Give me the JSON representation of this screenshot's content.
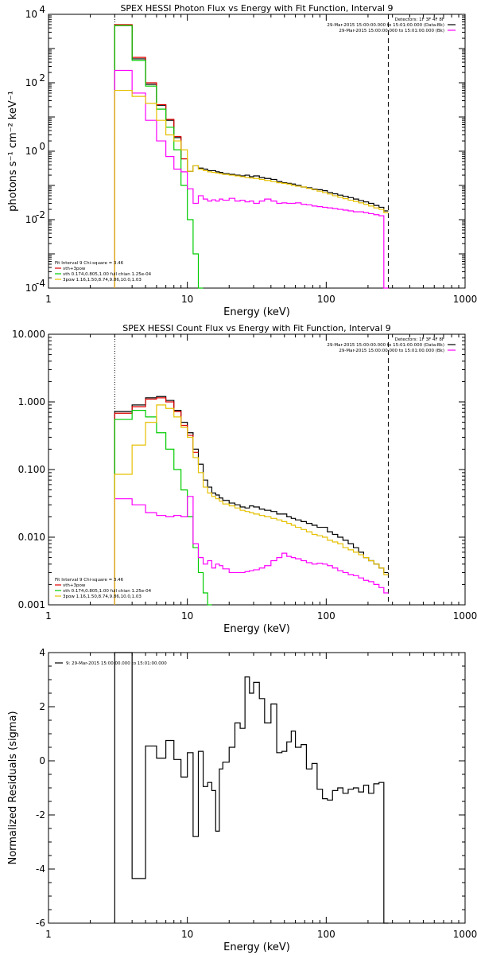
{
  "chart_data": [
    {
      "type": "line",
      "title": "SPEX HESSI Photon Flux vs Energy with Fit Function, Interval 9",
      "xlabel": "Energy (keV)",
      "ylabel": "photons s⁻¹ cm⁻² keV⁻¹",
      "xscale": "log",
      "yscale": "log",
      "xlim": [
        1,
        1000
      ],
      "ylim": [
        0.0001,
        10000
      ],
      "x_ticks": [
        {
          "v": 1,
          "label": "1"
        },
        {
          "v": 10,
          "label": "10"
        },
        {
          "v": 100,
          "label": "100"
        },
        {
          "v": 1000,
          "label": "1000"
        }
      ],
      "y_ticks": [
        {
          "v": 0.0001,
          "base": "10",
          "exp": "-4"
        },
        {
          "v": 0.01,
          "base": "10",
          "exp": "-2"
        },
        {
          "v": 1,
          "base": "10",
          "exp": "0"
        },
        {
          "v": 100,
          "base": "10",
          "exp": "2"
        },
        {
          "v": 10000,
          "base": "10",
          "exp": "4"
        }
      ],
      "header": [
        "Detectors: 1F 3F 4F 8F",
        "29-Mar-2015 15:00:00.000 to 15:01:00.000 (Data-Bk)",
        "29-Mar-2015 15:00:00.000 to 15:01:00.000 (Bk)"
      ],
      "legend": [
        "Fit Interval 9   Chi-square = 3.46",
        "vth+3pow",
        "vth 0.174,0.805,1.00  full chian 1.25e-04",
        "3pow 1.16,1.50,8.74,9.86,10.0,1.03"
      ],
      "vlines": {
        "dotted": 3.0,
        "dashed": 280
      },
      "edges": [
        3.0,
        4.0,
        5.0,
        6.0,
        7.0,
        8.0,
        9.0,
        10.0,
        11.0,
        12.0,
        13.0,
        14.0,
        15.0,
        16.0,
        17.0,
        18.0,
        20.0,
        22.0,
        24.0,
        26.0,
        28.0,
        30.0,
        33.0,
        36.0,
        40.0,
        44.0,
        48.0,
        52.0,
        56.0,
        60.0,
        66.0,
        72.0,
        79.0,
        86.0,
        94.0,
        102.0,
        111.0,
        121.0,
        132.0,
        144.0,
        157.0,
        171.0,
        186.0,
        202.0,
        220.0,
        240.0,
        260.0,
        280.0
      ],
      "series": [
        {
          "color": "#000000",
          "values": [
            4800,
            500,
            90,
            22,
            8,
            2.5,
            0.6,
            0.26,
            0.38,
            0.32,
            0.3,
            0.27,
            0.27,
            0.25,
            0.24,
            0.22,
            0.21,
            0.2,
            0.19,
            0.2,
            0.18,
            0.19,
            0.17,
            0.16,
            0.15,
            0.13,
            0.12,
            0.115,
            0.11,
            0.1,
            0.09,
            0.085,
            0.078,
            0.075,
            0.07,
            0.062,
            0.057,
            0.052,
            0.048,
            0.044,
            0.04,
            0.036,
            0.033,
            0.03,
            0.026,
            0.023,
            0.018
          ]
        },
        {
          "color": "#dd0000",
          "values": [
            5000,
            550,
            100,
            23,
            8.5,
            2.7,
            0.6
          ]
        },
        {
          "color": "#00cc00",
          "values": [
            4700,
            450,
            80,
            17,
            5,
            1.1,
            0.1,
            0.01,
            0.001,
            0.0001
          ]
        },
        {
          "color": "#ff00ff",
          "values": [
            230,
            50,
            8,
            2,
            0.7,
            0.3,
            0.25,
            0.08,
            0.03,
            0.05,
            0.04,
            0.035,
            0.038,
            0.035,
            0.04,
            0.037,
            0.042,
            0.035,
            0.037,
            0.033,
            0.035,
            0.03,
            0.035,
            0.04,
            0.035,
            0.03,
            0.031,
            0.03,
            0.03,
            0.031,
            0.028,
            0.027,
            0.025,
            0.024,
            0.023,
            0.022,
            0.021,
            0.02,
            0.019,
            0.018,
            0.017,
            0.017,
            0.016,
            0.015,
            0.014,
            0.013,
            0.0001
          ]
        },
        {
          "color": "#e6c000",
          "values": [
            60,
            40,
            25,
            8,
            3,
            2,
            1.1,
            0.26,
            0.38,
            0.3,
            0.27,
            0.25,
            0.24,
            0.23,
            0.22,
            0.21,
            0.2,
            0.19,
            0.18,
            0.17,
            0.165,
            0.16,
            0.15,
            0.14,
            0.13,
            0.12,
            0.115,
            0.11,
            0.1,
            0.095,
            0.09,
            0.082,
            0.075,
            0.068,
            0.062,
            0.056,
            0.05,
            0.045,
            0.041,
            0.037,
            0.034,
            0.031,
            0.028,
            0.025,
            0.022,
            0.02,
            0.016
          ]
        }
      ]
    },
    {
      "type": "line",
      "title": "SPEX HESSI Count Flux vs Energy with Fit Function, Interval 9",
      "xlabel": "Energy (keV)",
      "ylabel": "",
      "xscale": "log",
      "yscale": "log",
      "xlim": [
        1,
        1000
      ],
      "ylim": [
        0.001,
        10
      ],
      "x_ticks": [
        {
          "v": 1,
          "label": "1"
        },
        {
          "v": 10,
          "label": "10"
        },
        {
          "v": 100,
          "label": "100"
        },
        {
          "v": 1000,
          "label": "1000"
        }
      ],
      "y_ticks": [
        {
          "v": 0.001,
          "label": "0.001"
        },
        {
          "v": 0.01,
          "label": "0.010"
        },
        {
          "v": 0.1,
          "label": "0.100"
        },
        {
          "v": 1,
          "label": "1.000"
        },
        {
          "v": 10,
          "label": "10.000"
        }
      ],
      "header": [
        "Detectors: 1F 3F 4F 8F",
        "29-Mar-2015 15:00:00.000 to 15:01:00.000 (Data-Bk)",
        "29-Mar-2015 15:00:00.000 to 15:01:00.000 (Bk)"
      ],
      "legend": [
        "Fit Interval 9   Chi-square = 3.46",
        "vth+3pow",
        "vth 0.174,0.805,1.00  full chian 1.25e-04",
        "3pow 1.16,1.50,8.74,9.86,10.0,1.03"
      ],
      "vlines": {
        "dotted": 3.0,
        "dashed": 280
      },
      "edges": [
        3.0,
        4.0,
        5.0,
        6.0,
        7.0,
        8.0,
        9.0,
        10.0,
        11.0,
        12.0,
        13.0,
        14.0,
        15.0,
        16.0,
        17.0,
        18.0,
        20.0,
        22.0,
        24.0,
        26.0,
        28.0,
        30.0,
        33.0,
        36.0,
        40.0,
        44.0,
        48.0,
        52.0,
        56.0,
        60.0,
        66.0,
        72.0,
        79.0,
        86.0,
        94.0,
        102.0,
        111.0,
        121.0,
        132.0,
        144.0,
        157.0,
        171.0,
        186.0,
        202.0,
        220.0,
        240.0,
        260.0,
        280.0
      ],
      "series": [
        {
          "color": "#000000",
          "values": [
            0.72,
            0.9,
            1.15,
            1.2,
            1.05,
            0.75,
            0.5,
            0.35,
            0.2,
            0.12,
            0.07,
            0.055,
            0.045,
            0.042,
            0.038,
            0.035,
            0.032,
            0.03,
            0.028,
            0.027,
            0.029,
            0.028,
            0.026,
            0.025,
            0.024,
            0.022,
            0.022,
            0.02,
            0.019,
            0.018,
            0.017,
            0.016,
            0.015,
            0.014,
            0.014,
            0.012,
            0.011,
            0.01,
            0.009,
            0.008,
            0.007,
            0.006,
            0.005,
            0.0045,
            0.004,
            0.0035,
            0.003
          ]
        },
        {
          "color": "#dd0000",
          "values": [
            0.68,
            0.85,
            1.1,
            1.15,
            1.0,
            0.72,
            0.45,
            0.32,
            0.18
          ]
        },
        {
          "color": "#00cc00",
          "values": [
            0.55,
            0.75,
            0.6,
            0.35,
            0.2,
            0.1,
            0.05,
            0.02,
            0.007,
            0.003,
            0.0015,
            0.001
          ]
        },
        {
          "color": "#ff00ff",
          "values": [
            0.037,
            0.03,
            0.023,
            0.021,
            0.02,
            0.021,
            0.02,
            0.04,
            0.008,
            0.005,
            0.004,
            0.0045,
            0.0035,
            0.004,
            0.0038,
            0.0034,
            0.003,
            0.003,
            0.003,
            0.0031,
            0.0032,
            0.0033,
            0.0035,
            0.0038,
            0.0045,
            0.005,
            0.0058,
            0.0052,
            0.005,
            0.0048,
            0.0045,
            0.0042,
            0.004,
            0.0041,
            0.004,
            0.0038,
            0.0035,
            0.0032,
            0.003,
            0.0028,
            0.0027,
            0.0025,
            0.0023,
            0.0022,
            0.002,
            0.0018,
            0.0015
          ]
        },
        {
          "color": "#e6c000",
          "values": [
            0.085,
            0.23,
            0.5,
            0.9,
            0.8,
            0.6,
            0.42,
            0.3,
            0.15,
            0.09,
            0.055,
            0.045,
            0.04,
            0.037,
            0.034,
            0.031,
            0.029,
            0.027,
            0.025,
            0.024,
            0.023,
            0.022,
            0.021,
            0.02,
            0.019,
            0.018,
            0.017,
            0.016,
            0.015,
            0.014,
            0.013,
            0.012,
            0.011,
            0.0105,
            0.01,
            0.009,
            0.0085,
            0.008,
            0.007,
            0.0065,
            0.006,
            0.0055,
            0.005,
            0.0045,
            0.004,
            0.0035,
            0.0028
          ]
        }
      ]
    },
    {
      "type": "line",
      "title": "",
      "xlabel": "Energy (keV)",
      "ylabel": "Normalized Residuals (sigma)",
      "xscale": "log",
      "yscale": "linear",
      "xlim": [
        1,
        1000
      ],
      "ylim": [
        -6,
        4
      ],
      "x_ticks": [
        {
          "v": 1,
          "label": "1"
        },
        {
          "v": 10,
          "label": "10"
        },
        {
          "v": 100,
          "label": "100"
        },
        {
          "v": 1000,
          "label": "1000"
        }
      ],
      "y_ticks": [
        {
          "v": -6,
          "label": "-6"
        },
        {
          "v": -4,
          "label": "-4"
        },
        {
          "v": -2,
          "label": "-2"
        },
        {
          "v": 0,
          "label": "0"
        },
        {
          "v": 2,
          "label": "2"
        },
        {
          "v": 4,
          "label": "4"
        }
      ],
      "header": [],
      "legend": [
        "9: 29-Mar-2015 15:00:00.000 to 15:01:00.000"
      ],
      "vlines": {},
      "edges": [
        3.0,
        4.0,
        5.0,
        6.0,
        7.0,
        8.0,
        9.0,
        10.0,
        11.0,
        12.0,
        13.0,
        14.0,
        15.0,
        16.0,
        17.0,
        18.0,
        20.0,
        22.0,
        24.0,
        26.0,
        28.0,
        30.0,
        33.0,
        36.0,
        40.0,
        44.0,
        48.0,
        52.0,
        56.0,
        60.0,
        66.0,
        72.0,
        79.0,
        86.0,
        94.0,
        102.0,
        111.0,
        121.0,
        132.0,
        144.0,
        157.0,
        171.0,
        186.0,
        202.0,
        220.0,
        240.0,
        260.0,
        280.0
      ],
      "series": [
        {
          "color": "#000000",
          "values": [
            4,
            -4.35,
            0.55,
            0.1,
            0.75,
            0.05,
            -0.6,
            0.3,
            -2.8,
            0.35,
            -0.95,
            -0.8,
            -1.1,
            -2.6,
            -0.3,
            -0.05,
            0.5,
            1.4,
            1.2,
            3.1,
            2.5,
            2.9,
            2.3,
            1.4,
            2.1,
            0.3,
            0.35,
            0.7,
            1.1,
            0.5,
            0.6,
            -0.3,
            -0.1,
            -1.05,
            -1.4,
            -1.45,
            -1.1,
            -1.0,
            -1.2,
            -1.05,
            -1.0,
            -1.15,
            -0.9,
            -1.2,
            -0.85,
            -0.8,
            -6
          ]
        }
      ]
    }
  ]
}
